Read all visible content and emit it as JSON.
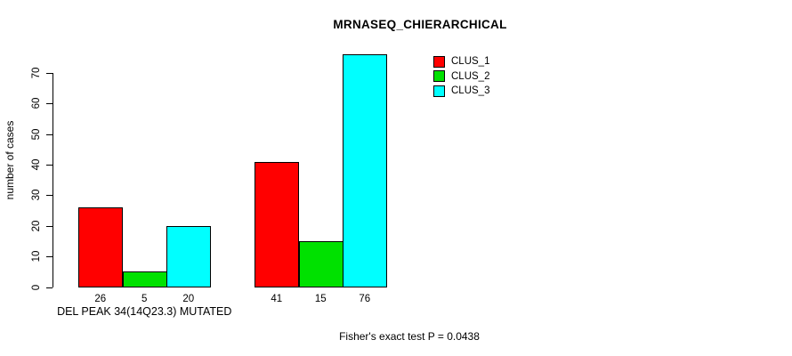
{
  "chart_data": {
    "type": "bar",
    "title": "MRNASEQ_CHIERARCHICAL",
    "ylabel": "number of cases",
    "xlabel": "",
    "ylim": [
      0,
      70
    ],
    "yticks": [
      0,
      10,
      20,
      30,
      40,
      50,
      60,
      70
    ],
    "grid": false,
    "legend_position": "top-right",
    "categories": [
      "DEL PEAK 34(14Q23.3) MUTATED",
      ""
    ],
    "series": [
      {
        "name": "CLUS_1",
        "color": "#ff0000",
        "values": [
          26,
          41
        ]
      },
      {
        "name": "CLUS_2",
        "color": "#00e100",
        "values": [
          5,
          15
        ]
      },
      {
        "name": "CLUS_3",
        "color": "#00ffff",
        "values": [
          20,
          76
        ]
      }
    ],
    "show_bar_value_labels": true,
    "annotation": "Fisher's exact test P = 0.0438"
  }
}
